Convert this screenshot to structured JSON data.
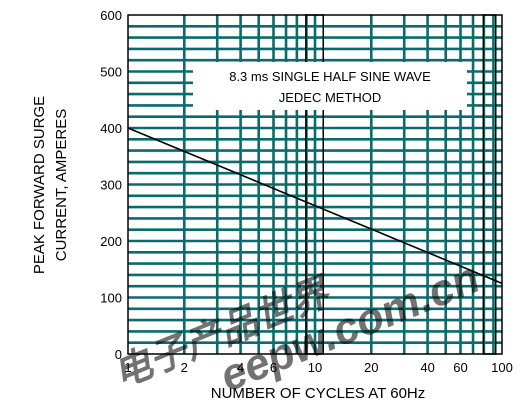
{
  "chart_data": {
    "type": "line",
    "title": "",
    "xlabel": "NUMBER OF CYCLES AT 60Hz",
    "ylabel_lines": [
      "PEAK FORWARD SURGE",
      "CURRENT, AMPERES"
    ],
    "x_scale": "log",
    "xlim": [
      1,
      100
    ],
    "ylim": [
      0,
      600
    ],
    "x_ticks": [
      1,
      2,
      4,
      6,
      10,
      20,
      40,
      60,
      100
    ],
    "y_ticks": [
      0,
      100,
      200,
      300,
      400,
      500,
      600
    ],
    "grid": true,
    "annotation": [
      "8.3 ms SINGLE HALF SINE WAVE",
      "JEDEC METHOD"
    ],
    "series": [
      {
        "x": [
          1,
          100
        ],
        "y": [
          400,
          125
        ]
      }
    ],
    "colors": {
      "grid": "#0a6b6b",
      "line": "#000000",
      "watermark": "#c0392b"
    }
  }
}
